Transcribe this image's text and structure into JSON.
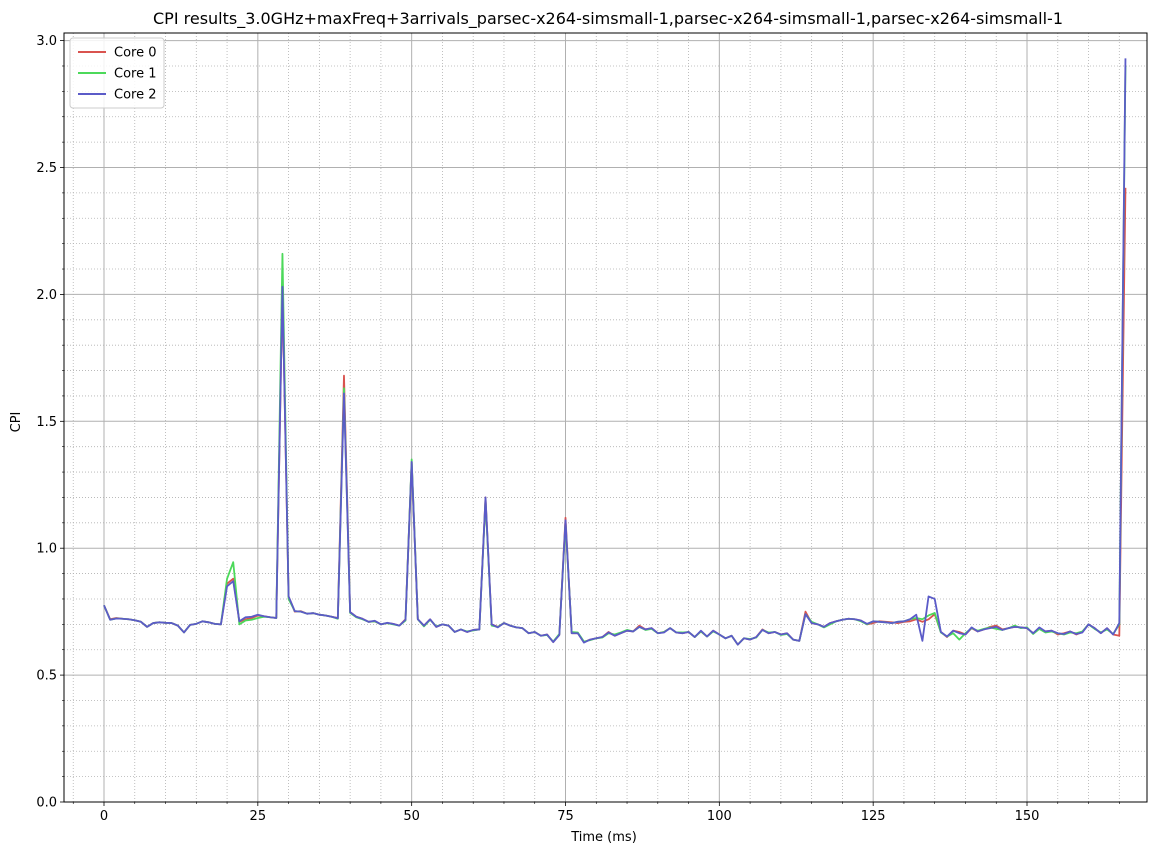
{
  "chart_data": {
    "type": "line",
    "title": "CPI results_3.0GHz+maxFreq+3arrivals_parsec-x264-simsmall-1,parsec-x264-simsmall-1,parsec-x264-simsmall-1",
    "xlabel": "Time (ms)",
    "ylabel": "CPI",
    "xlim": [
      -6.5,
      169.5
    ],
    "ylim": [
      0.0,
      3.03
    ],
    "xticks": [
      0,
      25,
      50,
      75,
      100,
      125,
      150
    ],
    "xtick_labels": [
      "0",
      "25",
      "50",
      "75",
      "100",
      "125",
      "150"
    ],
    "yticks": [
      0.0,
      0.5,
      1.0,
      1.5,
      2.0,
      2.5,
      3.0
    ],
    "ytick_labels": [
      "0.0",
      "0.5",
      "1.0",
      "1.5",
      "2.0",
      "2.5",
      "3.0"
    ],
    "grid": true,
    "minor_grid": true,
    "legend_position": "top-left",
    "colors": [
      "#d9534f",
      "#4cd95a",
      "#5b5bc8"
    ],
    "series": [
      {
        "name": "Core 0",
        "x": [
          0,
          1,
          2,
          3,
          4,
          5,
          6,
          7,
          8,
          9,
          10,
          11,
          12,
          13,
          14,
          15,
          16,
          17,
          18,
          19,
          20,
          21,
          22,
          23,
          24,
          25,
          26,
          27,
          28,
          29,
          30,
          31,
          32,
          33,
          34,
          35,
          36,
          37,
          38,
          39,
          40,
          41,
          42,
          43,
          44,
          45,
          46,
          47,
          48,
          49,
          50,
          51,
          52,
          53,
          54,
          55,
          56,
          57,
          58,
          59,
          60,
          61,
          62,
          63,
          64,
          65,
          66,
          67,
          68,
          69,
          70,
          71,
          72,
          73,
          74,
          75,
          76,
          77,
          78,
          79,
          80,
          81,
          82,
          83,
          84,
          85,
          86,
          87,
          88,
          89,
          90,
          91,
          92,
          93,
          94,
          95,
          96,
          97,
          98,
          99,
          100,
          101,
          102,
          103,
          104,
          105,
          106,
          107,
          108,
          109,
          110,
          111,
          112,
          113,
          114,
          115,
          116,
          117,
          118,
          119,
          120,
          121,
          122,
          123,
          124,
          125,
          126,
          127,
          128,
          129,
          130,
          131,
          132,
          133,
          134,
          135,
          136,
          137,
          138,
          139,
          140,
          141,
          142,
          143,
          144,
          145,
          146,
          147,
          148,
          149,
          150,
          151,
          152,
          153,
          154,
          155,
          156,
          157,
          158,
          159,
          160,
          161,
          162,
          163,
          164,
          165,
          166
        ],
        "values": [
          0.775,
          0.72,
          0.725,
          0.722,
          0.72,
          0.716,
          0.71,
          0.69,
          0.705,
          0.708,
          0.706,
          0.705,
          0.695,
          0.668,
          0.698,
          0.702,
          0.712,
          0.708,
          0.702,
          0.7,
          0.86,
          0.88,
          0.71,
          0.72,
          0.725,
          0.735,
          0.732,
          0.728,
          0.725,
          2.02,
          0.81,
          0.75,
          0.752,
          0.742,
          0.744,
          0.738,
          0.735,
          0.73,
          0.725,
          1.68,
          0.748,
          0.73,
          0.722,
          0.71,
          0.712,
          0.7,
          0.705,
          0.702,
          0.695,
          0.72,
          1.34,
          0.72,
          0.695,
          0.72,
          0.69,
          0.7,
          0.695,
          0.67,
          0.68,
          0.67,
          0.678,
          0.68,
          1.2,
          0.7,
          0.69,
          0.705,
          0.695,
          0.688,
          0.685,
          0.665,
          0.67,
          0.655,
          0.66,
          0.63,
          0.66,
          1.12,
          0.665,
          0.665,
          0.63,
          0.64,
          0.645,
          0.65,
          0.67,
          0.655,
          0.665,
          0.675,
          0.672,
          0.695,
          0.68,
          0.685,
          0.665,
          0.67,
          0.685,
          0.668,
          0.665,
          0.67,
          0.65,
          0.672,
          0.652,
          0.675,
          0.66,
          0.645,
          0.655,
          0.62,
          0.645,
          0.64,
          0.65,
          0.68,
          0.665,
          0.67,
          0.66,
          0.665,
          0.64,
          0.635,
          0.75,
          0.705,
          0.7,
          0.69,
          0.705,
          0.712,
          0.718,
          0.722,
          0.72,
          0.715,
          0.7,
          0.705,
          0.712,
          0.71,
          0.708,
          0.705,
          0.71,
          0.712,
          0.72,
          0.71,
          0.72,
          0.74,
          0.67,
          0.65,
          0.675,
          0.67,
          0.66,
          0.685,
          0.672,
          0.68,
          0.69,
          0.695,
          0.68,
          0.685,
          0.69,
          0.688,
          0.685,
          0.665,
          0.685,
          0.672,
          0.675,
          0.66,
          0.665,
          0.672,
          0.66,
          0.67,
          0.7,
          0.685,
          0.665,
          0.685,
          0.66,
          0.655,
          2.42
        ],
        "color": "#d9534f"
      },
      {
        "name": "Core 1",
        "x": [
          0,
          1,
          2,
          3,
          4,
          5,
          6,
          7,
          8,
          9,
          10,
          11,
          12,
          13,
          14,
          15,
          16,
          17,
          18,
          19,
          20,
          21,
          22,
          23,
          24,
          25,
          26,
          27,
          28,
          29,
          30,
          31,
          32,
          33,
          34,
          35,
          36,
          37,
          38,
          39,
          40,
          41,
          42,
          43,
          44,
          45,
          46,
          47,
          48,
          49,
          50,
          51,
          52,
          53,
          54,
          55,
          56,
          57,
          58,
          59,
          60,
          61,
          62,
          63,
          64,
          65,
          66,
          67,
          68,
          69,
          70,
          71,
          72,
          73,
          74,
          75,
          76,
          77,
          78,
          79,
          80,
          81,
          82,
          83,
          84,
          85,
          86,
          87,
          88,
          89,
          90,
          91,
          92,
          93,
          94,
          95,
          96,
          97,
          98,
          99,
          100,
          101,
          102,
          103,
          104,
          105,
          106,
          107,
          108,
          109,
          110,
          111,
          112,
          113,
          114,
          115,
          116,
          117,
          118,
          119,
          120,
          121,
          122,
          123,
          124,
          125,
          126,
          127,
          128,
          129,
          130,
          131,
          132,
          133,
          134,
          135,
          136,
          137,
          138,
          139,
          140,
          141,
          142,
          143,
          144,
          145,
          146,
          147,
          148,
          149,
          150,
          151,
          152,
          153,
          154,
          155,
          156,
          157,
          158,
          159,
          160,
          161,
          162,
          163,
          164,
          165,
          166
        ],
        "values": [
          0.775,
          0.718,
          0.723,
          0.722,
          0.72,
          0.716,
          0.71,
          0.69,
          0.705,
          0.708,
          0.706,
          0.705,
          0.695,
          0.668,
          0.698,
          0.702,
          0.712,
          0.708,
          0.702,
          0.7,
          0.88,
          0.945,
          0.7,
          0.715,
          0.718,
          0.725,
          0.73,
          0.728,
          0.725,
          2.16,
          0.8,
          0.752,
          0.75,
          0.742,
          0.744,
          0.738,
          0.735,
          0.73,
          0.722,
          1.63,
          0.745,
          0.728,
          0.72,
          0.71,
          0.712,
          0.7,
          0.705,
          0.7,
          0.695,
          0.715,
          1.35,
          0.72,
          0.692,
          0.718,
          0.692,
          0.7,
          0.695,
          0.67,
          0.68,
          0.672,
          0.676,
          0.68,
          1.19,
          0.695,
          0.69,
          0.705,
          0.695,
          0.688,
          0.685,
          0.665,
          0.67,
          0.655,
          0.658,
          0.632,
          0.662,
          1.1,
          0.67,
          0.668,
          0.632,
          0.638,
          0.645,
          0.648,
          0.665,
          0.66,
          0.668,
          0.678,
          0.672,
          0.69,
          0.678,
          0.682,
          0.665,
          0.67,
          0.685,
          0.668,
          0.668,
          0.67,
          0.65,
          0.672,
          0.652,
          0.672,
          0.66,
          0.645,
          0.655,
          0.62,
          0.645,
          0.642,
          0.648,
          0.678,
          0.668,
          0.67,
          0.658,
          0.662,
          0.64,
          0.635,
          0.74,
          0.71,
          0.7,
          0.688,
          0.7,
          0.712,
          0.718,
          0.722,
          0.72,
          0.712,
          0.7,
          0.712,
          0.71,
          0.708,
          0.705,
          0.71,
          0.712,
          0.72,
          0.725,
          0.72,
          0.735,
          0.745,
          0.668,
          0.652,
          0.665,
          0.64,
          0.665,
          0.685,
          0.675,
          0.682,
          0.688,
          0.682,
          0.678,
          0.685,
          0.695,
          0.685,
          0.688,
          0.662,
          0.682,
          0.668,
          0.672,
          0.665,
          0.66,
          0.668,
          0.665,
          0.672,
          0.7,
          0.682,
          0.668,
          0.68,
          0.662,
          0.7,
          2.9
        ],
        "color": "#4cd95a"
      },
      {
        "name": "Core 2",
        "x": [
          0,
          1,
          2,
          3,
          4,
          5,
          6,
          7,
          8,
          9,
          10,
          11,
          12,
          13,
          14,
          15,
          16,
          17,
          18,
          19,
          20,
          21,
          22,
          23,
          24,
          25,
          26,
          27,
          28,
          29,
          30,
          31,
          32,
          33,
          34,
          35,
          36,
          37,
          38,
          39,
          40,
          41,
          42,
          43,
          44,
          45,
          46,
          47,
          48,
          49,
          50,
          51,
          52,
          53,
          54,
          55,
          56,
          57,
          58,
          59,
          60,
          61,
          62,
          63,
          64,
          65,
          66,
          67,
          68,
          69,
          70,
          71,
          72,
          73,
          74,
          75,
          76,
          77,
          78,
          79,
          80,
          81,
          82,
          83,
          84,
          85,
          86,
          87,
          88,
          89,
          90,
          91,
          92,
          93,
          94,
          95,
          96,
          97,
          98,
          99,
          100,
          101,
          102,
          103,
          104,
          105,
          106,
          107,
          108,
          109,
          110,
          111,
          112,
          113,
          114,
          115,
          116,
          117,
          118,
          119,
          120,
          121,
          122,
          123,
          124,
          125,
          126,
          127,
          128,
          129,
          130,
          131,
          132,
          133,
          134,
          135,
          136,
          137,
          138,
          139,
          140,
          141,
          142,
          143,
          144,
          145,
          146,
          147,
          148,
          149,
          150,
          151,
          152,
          153,
          154,
          155,
          156,
          157,
          158,
          159,
          160,
          161,
          162,
          163,
          164,
          165,
          166
        ],
        "values": [
          0.775,
          0.718,
          0.723,
          0.722,
          0.72,
          0.716,
          0.71,
          0.69,
          0.705,
          0.708,
          0.706,
          0.705,
          0.695,
          0.668,
          0.698,
          0.702,
          0.712,
          0.708,
          0.702,
          0.7,
          0.85,
          0.87,
          0.712,
          0.728,
          0.73,
          0.738,
          0.732,
          0.728,
          0.725,
          2.03,
          0.81,
          0.752,
          0.75,
          0.742,
          0.744,
          0.738,
          0.735,
          0.73,
          0.724,
          1.61,
          0.748,
          0.73,
          0.722,
          0.71,
          0.714,
          0.7,
          0.706,
          0.702,
          0.695,
          0.718,
          1.34,
          0.72,
          0.695,
          0.72,
          0.69,
          0.7,
          0.695,
          0.67,
          0.68,
          0.67,
          0.678,
          0.68,
          1.2,
          0.7,
          0.688,
          0.705,
          0.695,
          0.688,
          0.685,
          0.665,
          0.67,
          0.655,
          0.66,
          0.63,
          0.658,
          1.11,
          0.665,
          0.665,
          0.628,
          0.64,
          0.645,
          0.65,
          0.668,
          0.655,
          0.665,
          0.675,
          0.672,
          0.69,
          0.68,
          0.685,
          0.665,
          0.668,
          0.685,
          0.668,
          0.665,
          0.67,
          0.65,
          0.675,
          0.652,
          0.675,
          0.66,
          0.645,
          0.655,
          0.62,
          0.645,
          0.64,
          0.65,
          0.678,
          0.665,
          0.67,
          0.66,
          0.665,
          0.64,
          0.635,
          0.74,
          0.705,
          0.7,
          0.69,
          0.705,
          0.712,
          0.718,
          0.722,
          0.72,
          0.715,
          0.702,
          0.712,
          0.71,
          0.708,
          0.705,
          0.71,
          0.712,
          0.72,
          0.738,
          0.635,
          0.81,
          0.8,
          0.67,
          0.652,
          0.675,
          0.665,
          0.66,
          0.688,
          0.672,
          0.68,
          0.685,
          0.69,
          0.678,
          0.685,
          0.69,
          0.688,
          0.685,
          0.665,
          0.688,
          0.672,
          0.675,
          0.665,
          0.662,
          0.672,
          0.662,
          0.668,
          0.7,
          0.685,
          0.665,
          0.685,
          0.66,
          0.705,
          2.93
        ],
        "color": "#5b5bc8"
      }
    ]
  }
}
